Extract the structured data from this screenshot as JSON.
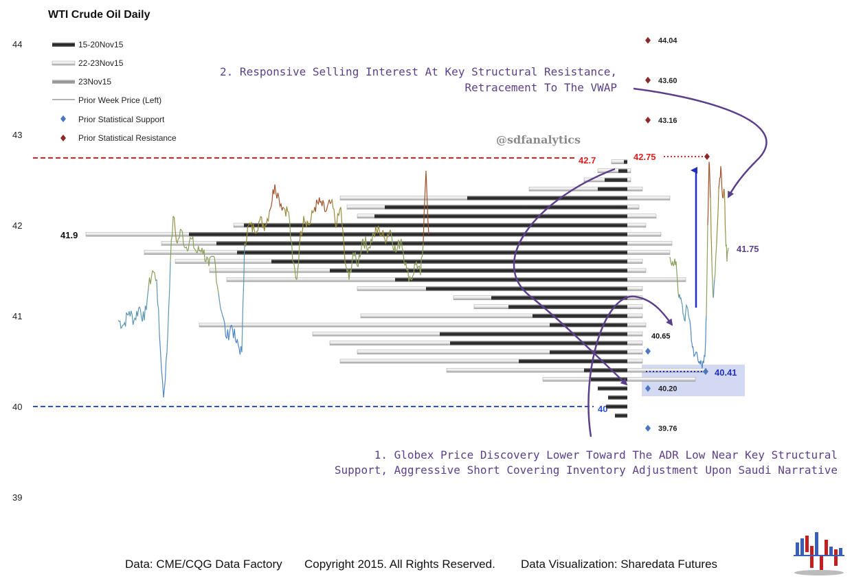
{
  "chart_data": {
    "type": "line",
    "title": "WTI Crude Oil Daily",
    "y_ticks": [
      "44",
      "43",
      "42",
      "41",
      "40",
      "39"
    ],
    "ylim": [
      39,
      44
    ],
    "legend": [
      {
        "label": "15-20Nov15",
        "style": "dark-bar"
      },
      {
        "label": "22-23Nov15",
        "style": "light-bar"
      },
      {
        "label": "23Nov15",
        "style": "mid-bar"
      },
      {
        "label": "Prior Week Price (Left)",
        "style": "line"
      },
      {
        "label": "Prior Statistical Support",
        "style": "blue-diamond"
      },
      {
        "label": "Prior Statistical Resistance",
        "style": "red-diamond"
      }
    ],
    "watermark": "@sdfanalytics",
    "reference_lines": [
      {
        "value": 42.75,
        "label": "42.7",
        "color": "#e02020"
      },
      {
        "value": 40.0,
        "label": "40",
        "color": "#2a50d8"
      }
    ],
    "level_labels": [
      {
        "text": "41.9",
        "value": 41.9
      },
      {
        "text": "42.75",
        "value": 42.75
      },
      {
        "text": "40.65",
        "value": 40.65
      },
      {
        "text": "40.41",
        "value": 40.41
      },
      {
        "text": "41.75",
        "value": 41.75
      }
    ],
    "statistical_resistance": [
      {
        "value": 44.04,
        "label": "44.04"
      },
      {
        "value": 43.6,
        "label": "43.60"
      },
      {
        "value": 43.16,
        "label": "43.16"
      }
    ],
    "statistical_support": [
      {
        "value": 40.2,
        "label": "40.20"
      },
      {
        "value": 39.76,
        "label": "39.76"
      }
    ],
    "volume_profile": {
      "increment": 0.1,
      "light_22_23Nov15": [
        {
          "price": 42.7,
          "start": 890
        },
        {
          "price": 42.6,
          "start": 870
        },
        {
          "price": 42.5,
          "start": 850
        },
        {
          "price": 42.4,
          "start": 770
        },
        {
          "price": 42.3,
          "start": 495
        },
        {
          "price": 42.2,
          "start": 505
        },
        {
          "price": 42.1,
          "start": 520
        },
        {
          "price": 42.0,
          "start": 340
        },
        {
          "price": 41.9,
          "start": 125
        },
        {
          "price": 41.8,
          "start": 235
        },
        {
          "price": 41.7,
          "start": 210
        },
        {
          "price": 41.6,
          "start": 255
        },
        {
          "price": 41.5,
          "start": 305
        },
        {
          "price": 41.4,
          "start": 330
        },
        {
          "price": 41.3,
          "start": 520
        },
        {
          "price": 41.2,
          "start": 660
        },
        {
          "price": 41.1,
          "start": 690
        },
        {
          "price": 41.0,
          "start": 525
        },
        {
          "price": 40.9,
          "start": 290
        },
        {
          "price": 40.8,
          "start": 455
        },
        {
          "price": 40.7,
          "start": 480
        },
        {
          "price": 40.6,
          "start": 520
        },
        {
          "price": 40.5,
          "start": 495
        },
        {
          "price": 40.4,
          "start": 650
        },
        {
          "price": 40.3,
          "start": 790
        }
      ],
      "dark_15_20Nov15": [
        {
          "price": 42.7,
          "start": 908
        },
        {
          "price": 42.6,
          "start": 900
        },
        {
          "price": 42.5,
          "start": 880
        },
        {
          "price": 42.4,
          "start": 870
        },
        {
          "price": 42.3,
          "start": 680
        },
        {
          "price": 42.2,
          "start": 560
        },
        {
          "price": 42.1,
          "start": 545
        },
        {
          "price": 42.0,
          "start": 355
        },
        {
          "price": 41.9,
          "start": 275
        },
        {
          "price": 41.8,
          "start": 315
        },
        {
          "price": 41.7,
          "start": 345
        },
        {
          "price": 41.6,
          "start": 395
        },
        {
          "price": 41.5,
          "start": 480
        },
        {
          "price": 41.4,
          "start": 575
        },
        {
          "price": 41.3,
          "start": 620
        },
        {
          "price": 41.2,
          "start": 715
        },
        {
          "price": 41.1,
          "start": 740
        },
        {
          "price": 41.0,
          "start": 775
        },
        {
          "price": 40.9,
          "start": 800
        },
        {
          "price": 40.8,
          "start": 640
        },
        {
          "price": 40.7,
          "start": 655
        },
        {
          "price": 40.6,
          "start": 800
        },
        {
          "price": 40.5,
          "start": 755
        },
        {
          "price": 40.4,
          "start": 850
        },
        {
          "price": 40.3,
          "start": 860
        },
        {
          "price": 40.2,
          "start": 870
        },
        {
          "price": 40.1,
          "start": 885
        },
        {
          "price": 40.0,
          "start": 882
        },
        {
          "price": 39.9,
          "start": 895
        }
      ],
      "light_ends_22_23Nov15": [
        {
          "price": 42.7,
          "end": 912
        },
        {
          "price": 42.6,
          "end": 918
        },
        {
          "price": 42.5,
          "end": 918
        },
        {
          "price": 42.4,
          "end": 935
        },
        {
          "price": 42.3,
          "end": 975
        },
        {
          "price": 42.2,
          "end": 930
        },
        {
          "price": 42.1,
          "end": 955
        },
        {
          "price": 42.0,
          "end": 940
        },
        {
          "price": 41.9,
          "end": 962
        },
        {
          "price": 41.8,
          "end": 978
        },
        {
          "price": 41.7,
          "end": 975
        },
        {
          "price": 41.6,
          "end": 935
        },
        {
          "price": 41.5,
          "end": 940
        },
        {
          "price": 41.4,
          "end": 998
        },
        {
          "price": 41.3,
          "end": 935
        },
        {
          "price": 41.2,
          "end": 935
        },
        {
          "price": 41.1,
          "end": 935
        },
        {
          "price": 41.0,
          "end": 935
        },
        {
          "price": 40.9,
          "end": 940
        },
        {
          "price": 40.8,
          "end": 935
        },
        {
          "price": 40.7,
          "end": 935
        },
        {
          "price": 40.6,
          "end": 935
        },
        {
          "price": 40.5,
          "end": 935
        },
        {
          "price": 40.4,
          "end": 1028
        },
        {
          "price": 40.3,
          "end": 1012
        }
      ]
    }
  },
  "annotations": {
    "ann2_line1": "2. Responsive Selling Interest At Key Structural Resistance,",
    "ann2_line2": "Retracement To The VWAP",
    "ann1_line1": "1. Globex Price Discovery Lower Toward The ADR Low Near Key Structural",
    "ann1_line2": "Support, Aggressive Short Covering Inventory Adjustment Upon Saudi Narrative"
  },
  "footer": {
    "source": "Data: CME/CQG Data Factory",
    "copyright": "Copyright 2015. All Rights Reserved.",
    "viz": "Data Visualization: Sharedata Futures"
  },
  "colors": {
    "resistance_red": "#e02020",
    "support_blue": "#2a50d8",
    "annotation_purple": "#5b3f8a",
    "diamond_red": "#8b2a2a",
    "diamond_blue": "#4a78c0",
    "highlight_box": "#c9d0f0"
  }
}
